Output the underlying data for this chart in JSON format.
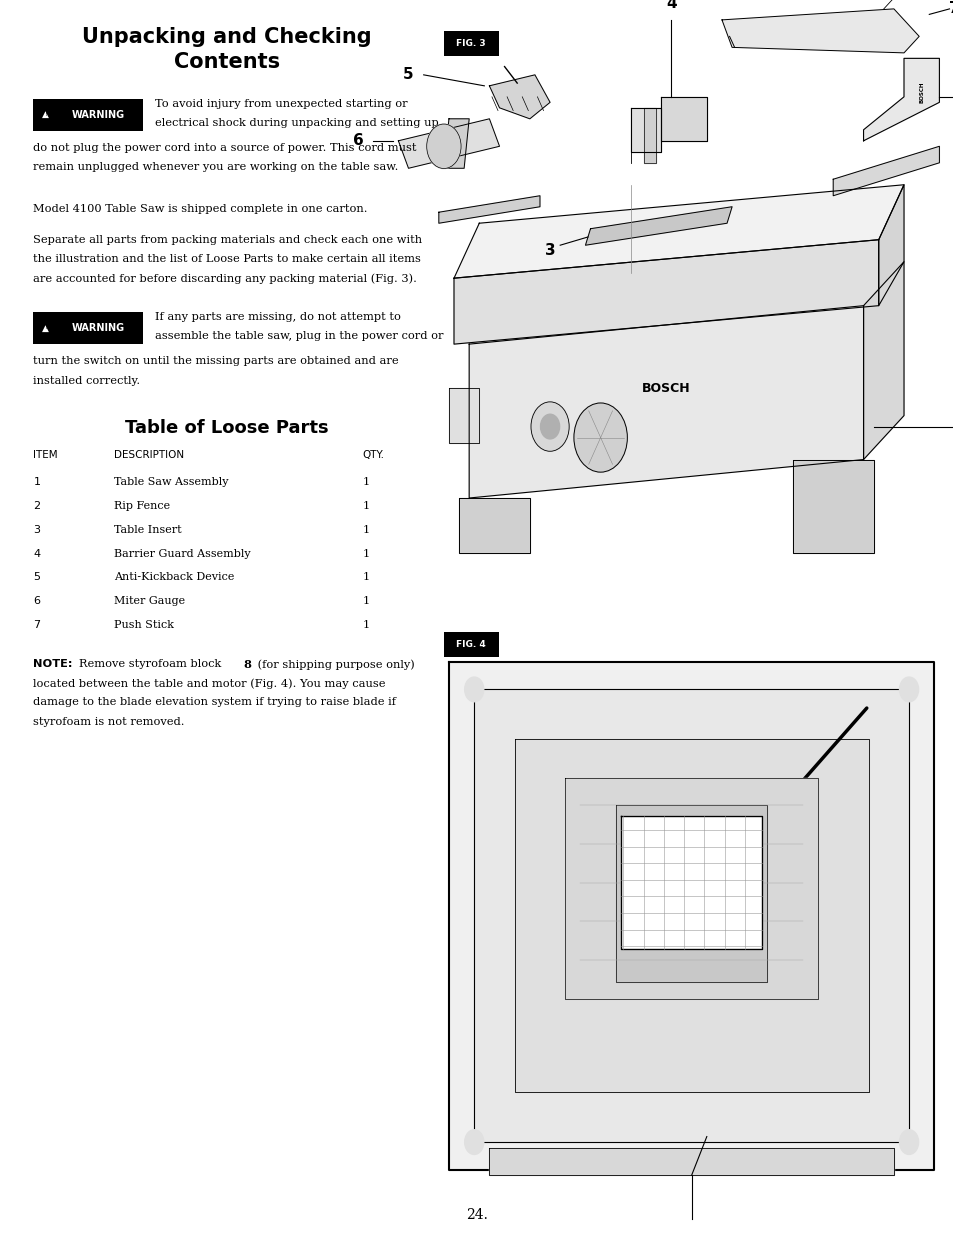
{
  "title_line1": "Unpacking and Checking",
  "title_line2": "Contents",
  "warning1_lines_right": [
    "To avoid injury from unexpected starting or",
    "electrical shock during unpacking and setting up,"
  ],
  "warning1_lines_full": [
    "do not plug the power cord into a source of power. This cord must",
    "remain unplugged whenever you are working on the table saw."
  ],
  "para1": "Model 4100 Table Saw is shipped complete in one carton.",
  "para2_lines": [
    "Separate all parts from packing materials and check each one with",
    "the illustration and the list of Loose Parts to make certain all items",
    "are accounted for before discarding any packing material (Fig. 3)."
  ],
  "warning2_lines_right": [
    "If any parts are missing, do not attempt to",
    "assemble the table saw, plug in the power cord or"
  ],
  "warning2_lines_full": [
    "turn the switch on until the missing parts are obtained and are",
    "installed correctly."
  ],
  "table_title": "Table of Loose Parts",
  "table_headers": [
    "ITEM",
    "DESCRIPTION",
    "QTY."
  ],
  "table_rows": [
    [
      "1",
      "Table Saw Assembly",
      "1"
    ],
    [
      "2",
      "Rip Fence",
      "1"
    ],
    [
      "3",
      "Table Insert",
      "1"
    ],
    [
      "4",
      "Barrier Guard Assembly",
      "1"
    ],
    [
      "5",
      "Anti-Kickback Device",
      "1"
    ],
    [
      "6",
      "Miter Gauge",
      "1"
    ],
    [
      "7",
      "Push Stick",
      "1"
    ]
  ],
  "note_bold": "NOTE:",
  "note_line1_pre": "Remove styrofoam block ",
  "note_line1_bold": "8",
  "note_line1_post": " (for shipping purpose only)",
  "note_lines": [
    "located between the table and motor (Fig. 4). You may cause",
    "damage to the blade elevation system if trying to raise blade if",
    "styrofoam is not removed."
  ],
  "page_number": "24.",
  "bg_color": "#ffffff",
  "text_color": "#000000",
  "warning_bg": "#000000",
  "fig3_label": "FIG. 3",
  "fig4_label": "FIG. 4",
  "lm": 0.035,
  "lcw": 0.44,
  "rcx": 0.46,
  "ls": 0.0155,
  "fs_body": 8.2,
  "fs_title": 15,
  "fs_table_title": 13,
  "fs_warn_label": 7,
  "fs_table_hdr": 7.5,
  "fs_table_row": 8.0
}
